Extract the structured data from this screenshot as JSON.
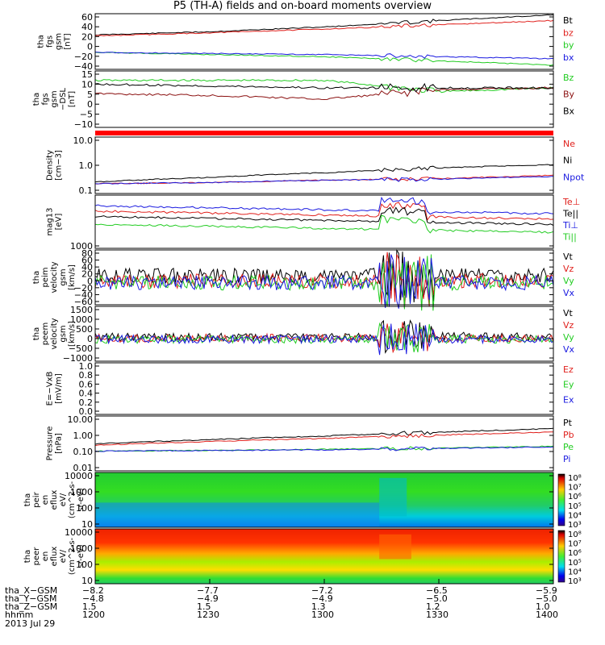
{
  "title": "P5 (TH-A) fields and on-board moments overview",
  "colors": {
    "black": "#000000",
    "red": "#e0201c",
    "green": "#22cc22",
    "blue": "#1a1ae0",
    "darkred": "#8b1010"
  },
  "panels": [
    {
      "id": "fgs-gsm",
      "ylabel": [
        "tha",
        "fgs",
        "gsm",
        "[nT]"
      ],
      "ticks": [
        "60",
        "40",
        "20",
        "0",
        "−20",
        "−40"
      ],
      "legend": [
        {
          "t": "Bt",
          "c": "black"
        },
        {
          "t": "bz",
          "c": "red"
        },
        {
          "t": "by",
          "c": "green"
        },
        {
          "t": "bx",
          "c": "blue"
        }
      ]
    },
    {
      "id": "fgs-gse-dsl",
      "ylabel": [
        "tha",
        "fgs",
        "gsm",
        "−DSL",
        "[nT]"
      ],
      "ticks": [
        "15",
        "10",
        "5",
        "0",
        "−5",
        "−10"
      ],
      "legend": [
        {
          "t": "Bz",
          "c": "green"
        },
        {
          "t": "By",
          "c": "darkred"
        },
        {
          "t": "Bx",
          "c": "black"
        }
      ]
    },
    {
      "id": "density",
      "ylabel": [
        "Density",
        "[cm−3]"
      ],
      "ticks": [
        "10.0",
        "1.0",
        "0.1"
      ],
      "legend": [
        {
          "t": "Ne",
          "c": "red"
        },
        {
          "t": "Ni",
          "c": "black"
        },
        {
          "t": "Npot",
          "c": "blue"
        }
      ]
    },
    {
      "id": "temperature",
      "ylabel": [
        "mag13",
        "[eV]"
      ],
      "ticks": [
        "1000"
      ],
      "legend": [
        {
          "t": "Te⊥",
          "c": "red"
        },
        {
          "t": "Te||",
          "c": "black"
        },
        {
          "t": "Ti⊥",
          "c": "blue"
        },
        {
          "t": "Ti||",
          "c": "green"
        }
      ]
    },
    {
      "id": "ion-velocity",
      "ylabel": [
        "tha",
        "peim",
        "velocity",
        "gsm",
        "[km/s]"
      ],
      "ticks": [
        "80",
        "60",
        "40",
        "20",
        "0",
        "−20",
        "−40",
        "−60"
      ],
      "legend": [
        {
          "t": "Vt",
          "c": "black"
        },
        {
          "t": "Vz",
          "c": "red"
        },
        {
          "t": "Vy",
          "c": "green"
        },
        {
          "t": "Vx",
          "c": "blue"
        }
      ]
    },
    {
      "id": "electron-velocity",
      "ylabel": [
        "tha",
        "peem",
        "velocity",
        "gsm",
        "[km/s]"
      ],
      "ticks": [
        "1500",
        "1000",
        "500",
        "0",
        "−500",
        "−1000"
      ],
      "legend": [
        {
          "t": "Vt",
          "c": "black"
        },
        {
          "t": "Vz",
          "c": "red"
        },
        {
          "t": "Vy",
          "c": "green"
        },
        {
          "t": "Vx",
          "c": "blue"
        }
      ]
    },
    {
      "id": "efield",
      "ylabel": [
        "E=−VxB",
        "[mV/m]"
      ],
      "ticks": [
        "1.0",
        "0.8",
        "0.6",
        "0.4",
        "0.2",
        "0.0"
      ],
      "legend": [
        {
          "t": "Ez",
          "c": "red"
        },
        {
          "t": "Ey",
          "c": "green"
        },
        {
          "t": "Ex",
          "c": "blue"
        }
      ]
    },
    {
      "id": "pressure",
      "ylabel": [
        "Pressure",
        "[nPa]"
      ],
      "ticks": [
        "10.00",
        "1.00",
        "0.10",
        "0.01"
      ],
      "legend": [
        {
          "t": "Pt",
          "c": "black"
        },
        {
          "t": "Pb",
          "c": "red"
        },
        {
          "t": "Pe",
          "c": "green"
        },
        {
          "t": "Pi",
          "c": "blue"
        }
      ]
    },
    {
      "id": "ion-spectrogram",
      "ylabel": [
        "tha",
        "peir",
        "en",
        "eflux",
        "eV/",
        "(cm^2-s-",
        "sr-eV)"
      ],
      "ticks": [
        "10000",
        "1000",
        "100",
        "10"
      ],
      "colorbar": [
        "10⁸",
        "10⁷",
        "10⁶",
        "10⁵",
        "10⁴",
        "10³"
      ]
    },
    {
      "id": "electron-spectrogram",
      "ylabel": [
        "tha",
        "peer",
        "en",
        "eflux",
        "eV/",
        "(cm^2-s-",
        "sr-eV)"
      ],
      "ticks": [
        "10000",
        "1000",
        "100",
        "10"
      ],
      "colorbar": [
        "10⁸",
        "10⁷",
        "10⁶",
        "10⁵",
        "10⁴",
        "10³"
      ]
    }
  ],
  "ephemeris": [
    {
      "label": "tha_X−GSM",
      "values": [
        "−8.2",
        "−7.7",
        "−7.2",
        "−6.5",
        "−5.9"
      ]
    },
    {
      "label": "tha_Y−GSM",
      "values": [
        "−4.8",
        "−4.9",
        "−4.9",
        "−5.0",
        "−5.0"
      ]
    },
    {
      "label": "tha_Z−GSM",
      "values": [
        "1.5",
        "1.5",
        "1.3",
        "1.2",
        "1.0"
      ]
    },
    {
      "label": "hhmm",
      "values": [
        "1200",
        "1230",
        "1300",
        "1330",
        "1400"
      ]
    }
  ],
  "date": "2013 Jul 29",
  "chart_data": {
    "type": "line",
    "title": "P5 (TH-A) fields and on-board moments overview",
    "x": [
      "1200",
      "1230",
      "1300",
      "1330",
      "1400"
    ],
    "xlabel": "hhmm",
    "date": "2013 Jul 29",
    "panels": [
      {
        "name": "fgs gsm [nT]",
        "ylim": [
          -40,
          65
        ],
        "series": [
          {
            "name": "Bt",
            "values": [
              25,
              31,
              40,
              52,
              63
            ]
          },
          {
            "name": "bz",
            "values": [
              23,
              29,
              36,
              44,
              52
            ]
          },
          {
            "name": "by",
            "values": [
              -8,
              -12,
              -16,
              -24,
              -32
            ]
          },
          {
            "name": "bx",
            "values": [
              -8,
              -10,
              -12,
              -16,
              -20
            ]
          }
        ]
      },
      {
        "name": "fgs gsm-DSL [nT]",
        "ylim": [
          -15,
          15
        ],
        "series": [
          {
            "name": "Bz",
            "values": [
              10,
              10,
              10,
              4,
              6
            ]
          },
          {
            "name": "By",
            "values": [
              3,
              2,
              0,
              5,
              6
            ]
          },
          {
            "name": "Bx",
            "values": [
              8,
              7,
              6,
              6,
              6
            ]
          }
        ]
      },
      {
        "name": "Density [cm-3]",
        "ylim": [
          0.1,
          20
        ],
        "log": true,
        "series": [
          {
            "name": "Ne",
            "values": [
              0.25,
              0.28,
              0.35,
              0.4,
              0.55
            ]
          },
          {
            "name": "Ni",
            "values": [
              0.3,
              0.45,
              0.7,
              1.1,
              1.5
            ]
          },
          {
            "name": "Npot",
            "values": [
              0.25,
              0.28,
              0.35,
              0.38,
              0.5
            ]
          }
        ]
      },
      {
        "name": "mag13 [eV]",
        "log": true,
        "series": [
          {
            "name": "Te⊥",
            "values": [
              3500,
              2800,
              2600,
              2900,
              3200
            ]
          },
          {
            "name": "Te||",
            "values": [
              3000,
              2400,
              2000,
              2300,
              2600
            ]
          },
          {
            "name": "Ti⊥",
            "values": [
              4000,
              3000,
              2300,
              1900,
              1400
            ]
          },
          {
            "name": "Ti||",
            "values": [
              2200,
              1800,
              1500,
              1400,
              1100
            ]
          }
        ]
      },
      {
        "name": "peim velocity gsm [km/s]",
        "ylim": [
          -60,
          90
        ],
        "series": [
          {
            "name": "Vt",
            "values": [
              20,
              20,
              20,
              20,
              20
            ]
          },
          {
            "name": "Vz",
            "values": [
              5,
              5,
              5,
              5,
              5
            ]
          },
          {
            "name": "Vy",
            "values": [
              0,
              0,
              0,
              0,
              0
            ]
          },
          {
            "name": "Vx",
            "values": [
              0,
              0,
              0,
              0,
              0
            ]
          }
        ]
      },
      {
        "name": "peem velocity gsm [km/s]",
        "ylim": [
          -1000,
          1500
        ],
        "series": [
          {
            "name": "Vt",
            "values": [
              100,
              100,
              100,
              150,
              100
            ]
          },
          {
            "name": "Vz",
            "values": [
              50,
              50,
              50,
              50,
              50
            ]
          },
          {
            "name": "Vy",
            "values": [
              0,
              0,
              0,
              0,
              0
            ]
          },
          {
            "name": "Vx",
            "values": [
              0,
              0,
              0,
              0,
              0
            ]
          }
        ]
      },
      {
        "name": "E=-VxB [mV/m]",
        "ylim": [
          0,
          1
        ],
        "series": []
      },
      {
        "name": "Pressure [nPa]",
        "ylim": [
          0.01,
          10
        ],
        "log": true,
        "series": [
          {
            "name": "Pt",
            "values": [
              0.3,
              0.5,
              0.8,
              1.3,
              2.0
            ]
          },
          {
            "name": "Pb",
            "values": [
              0.25,
              0.4,
              0.6,
              0.9,
              1.3
            ]
          },
          {
            "name": "Pe",
            "values": [
              0.12,
              0.13,
              0.15,
              0.18,
              0.22
            ]
          },
          {
            "name": "Pi",
            "values": [
              0.12,
              0.13,
              0.14,
              0.17,
              0.2
            ]
          }
        ]
      }
    ]
  }
}
